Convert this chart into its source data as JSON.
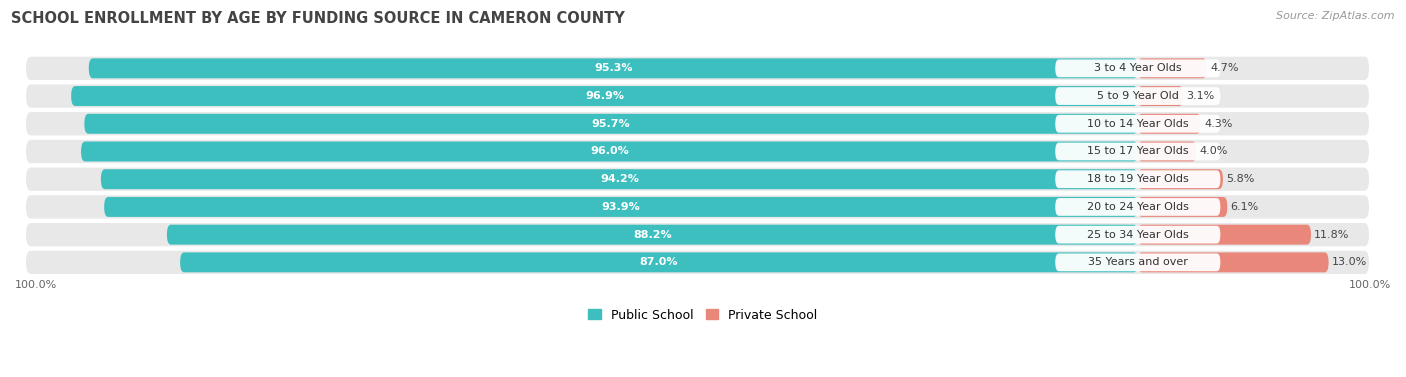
{
  "title": "SCHOOL ENROLLMENT BY AGE BY FUNDING SOURCE IN CAMERON COUNTY",
  "source": "Source: ZipAtlas.com",
  "categories": [
    "3 to 4 Year Olds",
    "5 to 9 Year Old",
    "10 to 14 Year Olds",
    "15 to 17 Year Olds",
    "18 to 19 Year Olds",
    "20 to 24 Year Olds",
    "25 to 34 Year Olds",
    "35 Years and over"
  ],
  "public_values": [
    95.3,
    96.9,
    95.7,
    96.0,
    94.2,
    93.9,
    88.2,
    87.0
  ],
  "private_values": [
    4.7,
    3.1,
    4.3,
    4.0,
    5.8,
    6.1,
    11.8,
    13.0
  ],
  "public_color": "#3dbfbf",
  "private_color": "#e8877a",
  "row_bg_color": "#e8e8e8",
  "bar_bg_color": "#f0f0f0",
  "title_fontsize": 10.5,
  "label_fontsize": 8,
  "cat_fontsize": 8,
  "tick_fontsize": 8,
  "legend_fontsize": 9,
  "source_fontsize": 8,
  "x_left_label": "100.0%",
  "x_right_label": "100.0%"
}
